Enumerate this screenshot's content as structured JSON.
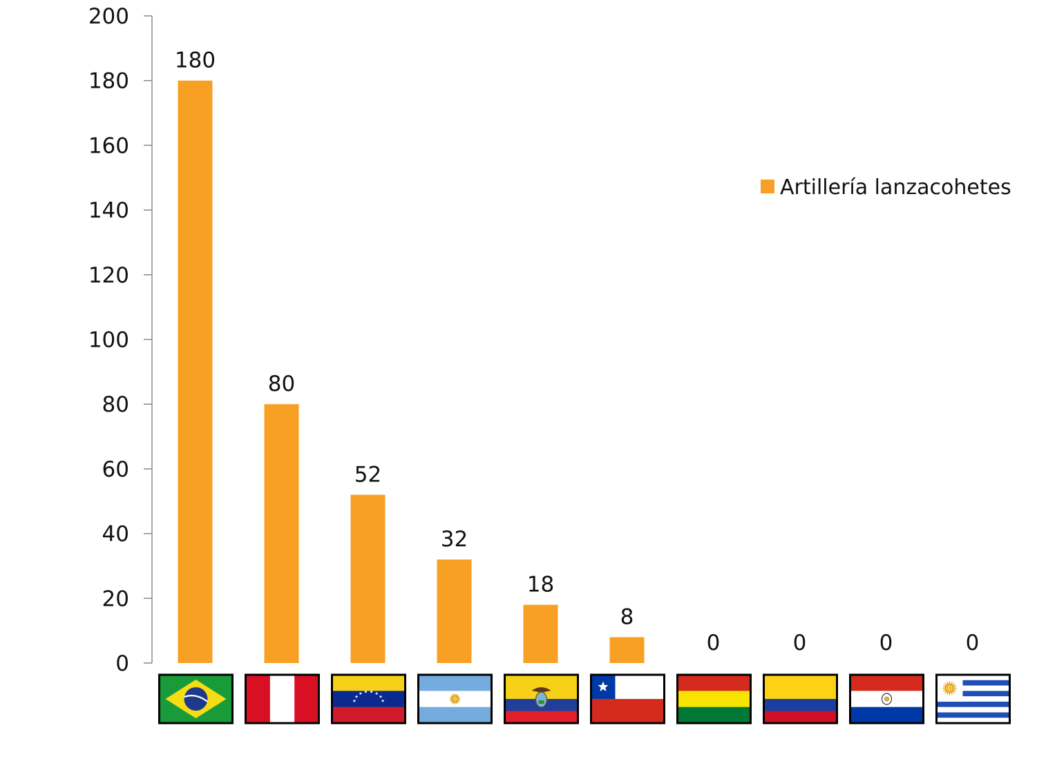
{
  "chart_data": {
    "type": "bar",
    "categories": [
      "Brasil",
      "Perú",
      "Venezuela",
      "Argentina",
      "Ecuador",
      "Chile",
      "Bolivia",
      "Colombia",
      "Paraguay",
      "Uruguay"
    ],
    "series": [
      {
        "name": "Artillería lanzacohetes",
        "values": [
          180,
          80,
          52,
          32,
          18,
          8,
          0,
          0,
          0,
          0
        ],
        "color": "#f7a024"
      }
    ],
    "ylim": [
      0,
      200
    ],
    "yticks": [
      0,
      20,
      40,
      60,
      80,
      100,
      120,
      140,
      160,
      180,
      200
    ],
    "grid": false,
    "legend_position": "right",
    "x_tick_display": "flags",
    "flag_icons": [
      "brazil-flag-icon",
      "peru-flag-icon",
      "venezuela-flag-icon",
      "argentina-flag-icon",
      "ecuador-flag-icon",
      "chile-flag-icon",
      "bolivia-flag-icon",
      "colombia-flag-icon",
      "paraguay-flag-icon",
      "uruguay-flag-icon"
    ]
  }
}
